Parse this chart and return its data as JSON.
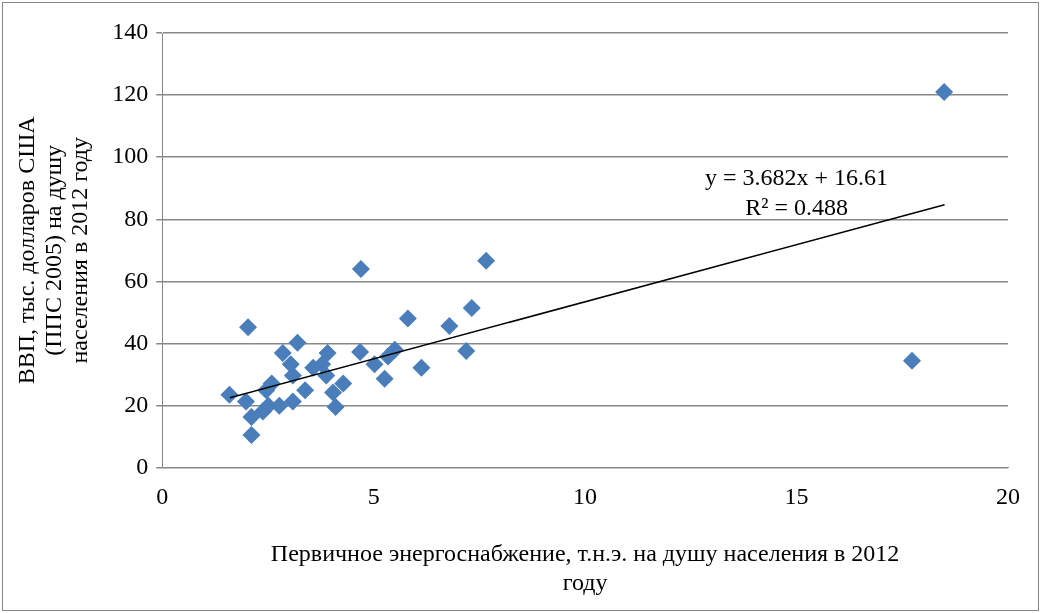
{
  "chart_data": {
    "type": "scatter",
    "xlabel": "Первичное энергоснабжение, т.н.э. на душу населения в 2012 году",
    "ylabel": "ВВП, тыс. долларов США (ППС 2005) на душу населения в 2012 году",
    "xlim": [
      0,
      20
    ],
    "xticks": [
      0,
      5,
      10,
      15,
      20
    ],
    "ylim": [
      0,
      140
    ],
    "yticks": [
      0,
      20,
      40,
      60,
      80,
      100,
      120,
      140
    ],
    "grid": "y",
    "legend": false,
    "series": [
      {
        "marker": "diamond",
        "color": "#4a7ebb",
        "x": [
          1.59,
          2.03,
          4.7,
          7.66,
          5.81,
          6.79,
          7.32,
          7.19,
          6.13,
          5.26,
          4.68,
          5.02,
          5.5,
          5.34,
          3.2,
          2.85,
          3.04,
          3.91,
          3.78,
          3.88,
          4.28,
          4.04,
          4.1,
          3.38,
          3.09,
          2.77,
          3.57,
          3.09,
          2.59,
          2.46,
          1.98,
          2.11,
          2.38,
          2.51,
          2.11,
          18.49,
          17.73
        ],
        "values": [
          23.5,
          45.2,
          64,
          66.6,
          48,
          45.6,
          51.4,
          37.6,
          32.2,
          28.6,
          37.2,
          33.3,
          38,
          35.8,
          40.2,
          36.9,
          33.3,
          36.9,
          33.3,
          29.7,
          27.1,
          24.2,
          19.5,
          24.9,
          21.3,
          19.9,
          32.2,
          29.7,
          27.1,
          24.9,
          21.3,
          16.3,
          18.1,
          19.9,
          10.5,
          121,
          34.4
        ]
      },
      {
        "type": "line",
        "color": "#000000",
        "x": [
          1.6,
          18.5
        ],
        "values": [
          22.5,
          84.7
        ]
      }
    ],
    "annotations": [
      "y = 3.682x + 16.61",
      "R² = 0.488"
    ]
  }
}
